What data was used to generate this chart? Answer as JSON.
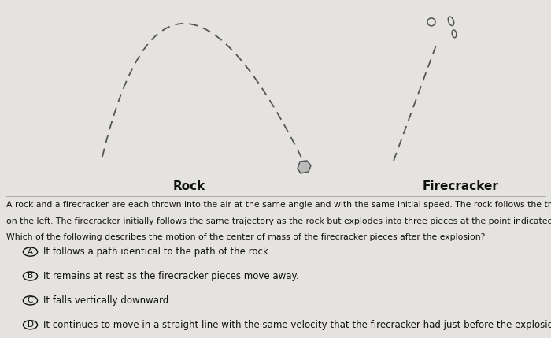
{
  "bg_color": "#e5e3e0",
  "rock_label": "Rock",
  "firecracker_label": "Firecracker",
  "paragraph_lines": [
    "A rock and a firecracker are each thrown into the air at the same angle and with the same initial speed. The rock follows the trajectory shown above",
    "on the left. The firecracker initially follows the same trajectory as the rock but explodes into three pieces at the point indicated above on the right.",
    "Which of the following describes the motion of the center of mass of the firecracker pieces after the explosion?"
  ],
  "options": [
    {
      "letter": "A",
      "text": "It follows a path identical to the path of the rock."
    },
    {
      "letter": "B",
      "text": "It remains at rest as the firecracker pieces move away."
    },
    {
      "letter": "C",
      "text": "It falls vertically downward."
    },
    {
      "letter": "D",
      "text": "It continues to move in a straight line with the same velocity that the firecracker had just before the explosion."
    }
  ],
  "dash_color": "#555555",
  "text_color": "#111111",
  "label_fontsize": 11,
  "body_fontsize": 7.8,
  "option_fontsize": 8.5,
  "option_circle_fontsize": 7.5
}
